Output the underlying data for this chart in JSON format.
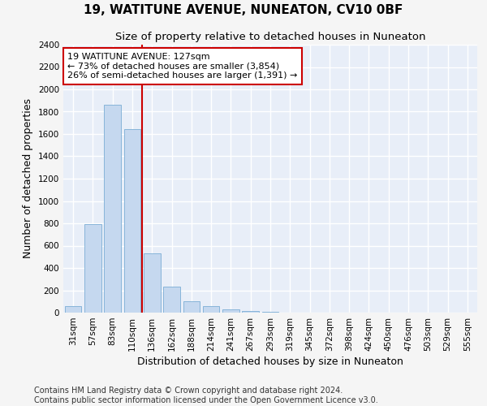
{
  "title": "19, WATITUNE AVENUE, NUNEATON, CV10 0BF",
  "subtitle": "Size of property relative to detached houses in Nuneaton",
  "xlabel": "Distribution of detached houses by size in Nuneaton",
  "ylabel": "Number of detached properties",
  "bar_color": "#c5d8ef",
  "bar_edge_color": "#7aadd4",
  "background_color": "#e8eef8",
  "fig_background_color": "#f5f5f5",
  "grid_color": "#ffffff",
  "categories": [
    "31sqm",
    "57sqm",
    "83sqm",
    "110sqm",
    "136sqm",
    "162sqm",
    "188sqm",
    "214sqm",
    "241sqm",
    "267sqm",
    "293sqm",
    "319sqm",
    "345sqm",
    "372sqm",
    "398sqm",
    "424sqm",
    "450sqm",
    "476sqm",
    "503sqm",
    "529sqm",
    "555sqm"
  ],
  "values": [
    55,
    790,
    1860,
    1645,
    530,
    235,
    105,
    55,
    30,
    15,
    10,
    0,
    0,
    0,
    0,
    0,
    0,
    0,
    0,
    0,
    0
  ],
  "ylim": [
    0,
    2400
  ],
  "yticks": [
    0,
    200,
    400,
    600,
    800,
    1000,
    1200,
    1400,
    1600,
    1800,
    2000,
    2200,
    2400
  ],
  "property_bar_index": 3,
  "vline_color": "#cc0000",
  "annotation_line1": "19 WATITUNE AVENUE: 127sqm",
  "annotation_line2": "← 73% of detached houses are smaller (3,854)",
  "annotation_line3": "26% of semi-detached houses are larger (1,391) →",
  "annotation_box_color": "#ffffff",
  "annotation_box_edge": "#cc0000",
  "footer_text": "Contains HM Land Registry data © Crown copyright and database right 2024.\nContains public sector information licensed under the Open Government Licence v3.0.",
  "title_fontsize": 11,
  "subtitle_fontsize": 9.5,
  "xlabel_fontsize": 9,
  "ylabel_fontsize": 9,
  "annotation_fontsize": 8,
  "footer_fontsize": 7,
  "tick_fontsize": 7.5
}
